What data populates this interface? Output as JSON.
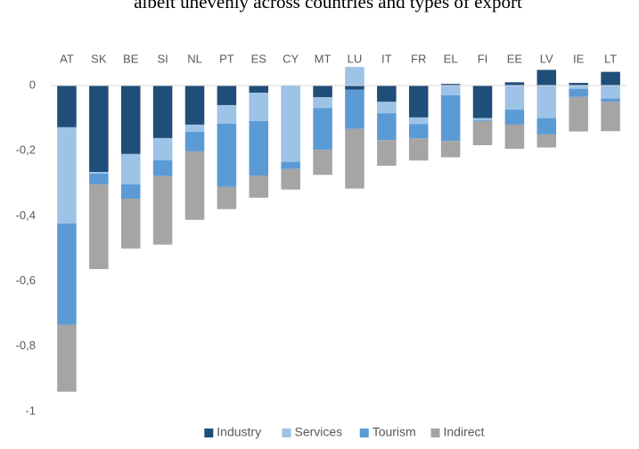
{
  "chart_data": {
    "type": "stacked_bar",
    "title": "albeit unevenly across countries and types of export",
    "categories": [
      "AT",
      "SK",
      "BE",
      "SI",
      "NL",
      "PT",
      "ES",
      "CY",
      "MT",
      "LU",
      "IT",
      "FR",
      "EL",
      "FI",
      "EE",
      "LV",
      "IE",
      "LT"
    ],
    "series": [
      {
        "name": "Industry",
        "color": "#1f4e79",
        "values": [
          -0.128,
          -0.265,
          -0.21,
          -0.161,
          -0.12,
          -0.06,
          -0.022,
          -0.002,
          -0.036,
          -0.013,
          -0.05,
          -0.098,
          0.005,
          -0.1,
          0.01,
          0.048,
          0.008,
          0.042
        ]
      },
      {
        "name": "Services",
        "color": "#9dc3e6",
        "values": [
          -0.295,
          -0.005,
          -0.093,
          -0.068,
          -0.022,
          -0.057,
          -0.087,
          -0.232,
          -0.033,
          0.057,
          -0.035,
          -0.02,
          -0.03,
          -0.006,
          -0.074,
          -0.1,
          -0.01,
          -0.04
        ]
      },
      {
        "name": "Tourism",
        "color": "#5b9bd5",
        "values": [
          -0.311,
          -0.033,
          -0.044,
          -0.049,
          -0.06,
          -0.194,
          -0.167,
          -0.022,
          -0.128,
          -0.12,
          -0.082,
          -0.044,
          -0.14,
          -0.003,
          -0.046,
          -0.05,
          -0.025,
          -0.01
        ]
      },
      {
        "name": "Indirect",
        "color": "#a5a5a5",
        "values": [
          -0.205,
          -0.26,
          -0.153,
          -0.21,
          -0.21,
          -0.068,
          -0.068,
          -0.063,
          -0.077,
          -0.183,
          -0.079,
          -0.068,
          -0.05,
          -0.074,
          -0.074,
          -0.04,
          -0.106,
          -0.09
        ]
      }
    ],
    "ylim": [
      -1,
      0.1
    ],
    "yticks": [
      {
        "value": -1,
        "label": "-1"
      },
      {
        "value": -0.8,
        "label": "-0,8"
      },
      {
        "value": -0.6,
        "label": "-0,6"
      },
      {
        "value": -0.4,
        "label": "-0,4"
      },
      {
        "value": -0.2,
        "label": "-0,2"
      },
      0
    ],
    "grid": false,
    "legend": "bottom"
  }
}
